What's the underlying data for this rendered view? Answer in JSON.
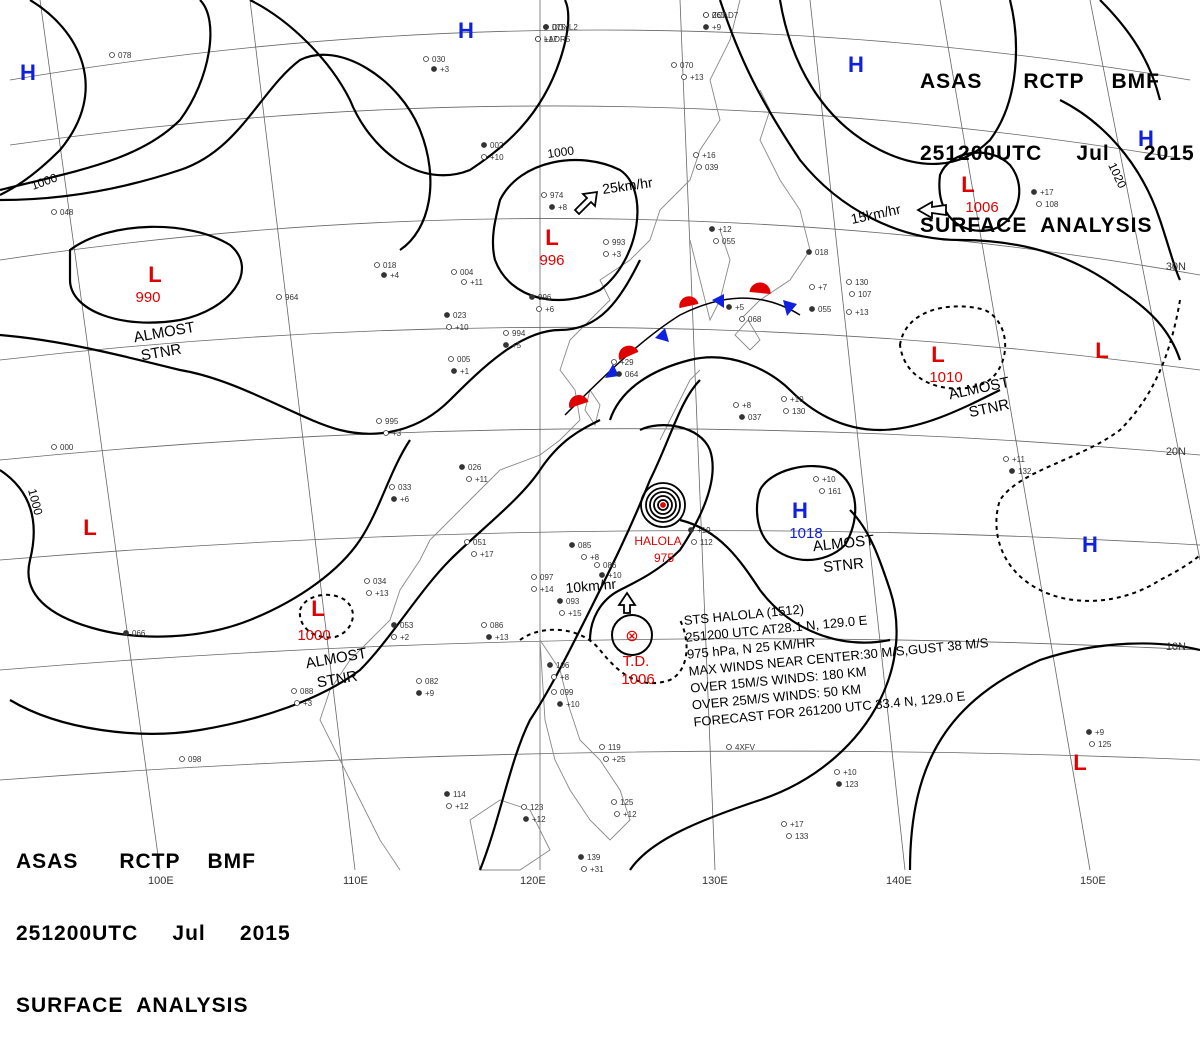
{
  "header_top": {
    "line1": "ASAS      RCTP    BMF",
    "line2": "251200UTC     Jul     2015",
    "line3": "SURFACE  ANALYSIS"
  },
  "header_bottom": {
    "line1": "ASAS      RCTP    BMF",
    "line2": "251200UTC     Jul     2015",
    "line3": "SURFACE  ANALYSIS"
  },
  "colors": {
    "low": "#e00000",
    "high": "#1020e0",
    "isobar": "#000000",
    "grid": "#555555"
  },
  "pressure_centers": [
    {
      "type": "H",
      "value": ""
    },
    {
      "type": "H",
      "value": ""
    },
    {
      "type": "H",
      "value": ""
    },
    {
      "type": "H",
      "value": ""
    },
    {
      "type": "L",
      "value": "990"
    },
    {
      "type": "L",
      "value": "996"
    },
    {
      "type": "L",
      "value": "1006"
    },
    {
      "type": "L",
      "value": "1010"
    },
    {
      "type": "L",
      "value": ""
    },
    {
      "type": "L",
      "value": ""
    },
    {
      "type": "L",
      "value": "1000"
    },
    {
      "type": "H",
      "value": "1018"
    },
    {
      "type": "H",
      "value": ""
    },
    {
      "type": "L",
      "value": ""
    }
  ],
  "isobar_labels": [
    "1000",
    "1000",
    "1000",
    "1020"
  ],
  "motion_labels": [
    "25km/hr",
    "15km/hr",
    "10km/hr"
  ],
  "stnr_labels": [
    {
      "line1": "ALMOST",
      "line2": "STNR"
    },
    {
      "line1": "ALMOST",
      "line2": "STNR"
    },
    {
      "line1": "ALMOST",
      "line2": "STNR"
    },
    {
      "line1": "ALMOST",
      "line2": "STNR"
    }
  ],
  "typhoon": {
    "name": "HALOLA",
    "pressure": "975"
  },
  "td": {
    "label": "T.D.",
    "pressure": "1006"
  },
  "storm_info": {
    "line1": "STS  HALOLA  (1512)",
    "line2": "251200 UTC  AT28.1 N, 129.0 E",
    "line3": "975 hPa, N  25 KM/HR",
    "line4": "MAX WINDS NEAR CENTER:30 M/S,GUST 38 M/S",
    "line5": "OVER 15M/S WINDS: 180 KM",
    "line6": "OVER 25M/S WINDS: 50 KM",
    "line7": "FORECAST FOR 261200 UTC 33.4 N, 129.0 E"
  },
  "lon_labels": [
    "100E",
    "110E",
    "120E",
    "130E",
    "140E",
    "150E"
  ],
  "lat_labels": [
    "30N",
    "20N",
    "10N"
  ],
  "station_values": [
    "075",
    "+17",
    "065",
    "+9",
    "078",
    "030",
    "+3",
    "070",
    "+13",
    "002",
    "+10",
    "974",
    "+8",
    "993",
    "+3",
    "996",
    "+6",
    "994",
    "+5",
    "964",
    "018",
    "+4",
    "004",
    "+11",
    "023",
    "+10",
    "005",
    "+1",
    "995",
    "+3",
    "026",
    "+11",
    "033",
    "+6",
    "051",
    "+17",
    "085",
    "+8",
    "086",
    "+10",
    "097",
    "+14",
    "093",
    "+15",
    "086",
    "+13",
    "034",
    "+13",
    "053",
    "+2",
    "082",
    "+9",
    "088",
    "+3",
    "106",
    "+8",
    "099",
    "+10",
    "119",
    "+25",
    "114",
    "+12",
    "123",
    "+12",
    "125",
    "+12",
    "139",
    "+31",
    "098",
    "066",
    "000",
    "048",
    "018",
    "130",
    "107",
    "+17",
    "108",
    "+11",
    "132",
    "+10",
    "161",
    "+9",
    "125",
    "+10",
    "123",
    "+17",
    "133",
    "+19",
    "112",
    "+29",
    "064",
    "+16",
    "039",
    "+12",
    "055",
    "+8",
    "037",
    "+10",
    "130",
    "+5",
    "068",
    "+7",
    "055",
    "+13",
    "4XFV",
    "DDYL2",
    "LAOR5",
    "ZCAD7"
  ]
}
